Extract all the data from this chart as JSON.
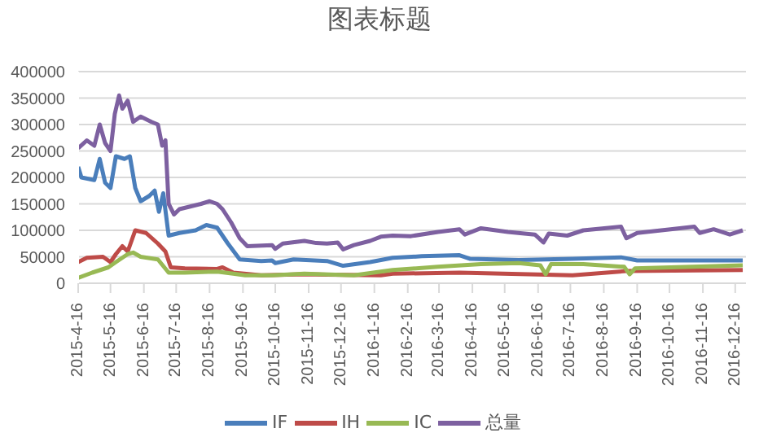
{
  "chart_data": {
    "type": "line",
    "title": "图表标题",
    "xlim": [
      "2015-04-16",
      "2016-12-26"
    ],
    "xticks": [
      {
        "value": "2015-04-16",
        "label": "2015-4-16"
      },
      {
        "value": "2015-05-16",
        "label": "2015-5-16"
      },
      {
        "value": "2015-06-16",
        "label": "2015-6-16"
      },
      {
        "value": "2015-07-16",
        "label": "2015-7-16"
      },
      {
        "value": "2015-08-16",
        "label": "2015-8-16"
      },
      {
        "value": "2015-09-16",
        "label": "2015-9-16"
      },
      {
        "value": "2015-10-16",
        "label": "2015-10-16"
      },
      {
        "value": "2015-11-16",
        "label": "2015-11-16"
      },
      {
        "value": "2015-12-16",
        "label": "2015-12-16"
      },
      {
        "value": "2016-01-16",
        "label": "2016-1-16"
      },
      {
        "value": "2016-02-16",
        "label": "2016-2-16"
      },
      {
        "value": "2016-03-16",
        "label": "2016-3-16"
      },
      {
        "value": "2016-04-16",
        "label": "2016-4-16"
      },
      {
        "value": "2016-05-16",
        "label": "2016-5-16"
      },
      {
        "value": "2016-06-16",
        "label": "2016-6-16"
      },
      {
        "value": "2016-07-16",
        "label": "2016-7-16"
      },
      {
        "value": "2016-08-16",
        "label": "2016-8-16"
      },
      {
        "value": "2016-09-16",
        "label": "2016-9-16"
      },
      {
        "value": "2016-10-16",
        "label": "2016-10-16"
      },
      {
        "value": "2016-11-16",
        "label": "2016-11-16"
      },
      {
        "value": "2016-12-16",
        "label": "2016-12-16"
      }
    ],
    "ylim": [
      0,
      400000
    ],
    "yticks": [
      0,
      50000,
      100000,
      150000,
      200000,
      250000,
      300000,
      350000,
      400000
    ],
    "grid": "y",
    "legend": "bottom",
    "marker": "none",
    "line_style": "solid",
    "series": [
      {
        "name": "IF",
        "color": "#4a7ebb",
        "x": [
          "2015-04-16",
          "2015-04-19",
          "2015-05-01",
          "2015-05-06",
          "2015-05-11",
          "2015-05-16",
          "2015-05-21",
          "2015-05-29",
          "2015-06-03",
          "2015-06-08",
          "2015-06-13",
          "2015-06-21",
          "2015-06-26",
          "2015-06-30",
          "2015-07-04",
          "2015-07-09",
          "2015-07-19",
          "2015-08-03",
          "2015-08-13",
          "2015-08-23",
          "2015-09-02",
          "2015-09-13",
          "2015-10-03",
          "2015-10-13",
          "2015-10-16",
          "2015-11-02",
          "2015-12-03",
          "2015-12-18",
          "2016-01-12",
          "2016-02-02",
          "2016-02-29",
          "2016-04-04",
          "2016-04-14",
          "2016-05-29",
          "2016-07-18",
          "2016-09-01",
          "2016-09-16",
          "2016-12-23"
        ],
        "values": [
          220000,
          200000,
          195000,
          235000,
          190000,
          180000,
          240000,
          235000,
          240000,
          180000,
          155000,
          165000,
          175000,
          135000,
          170000,
          90000,
          95000,
          100000,
          110000,
          105000,
          75000,
          45000,
          42000,
          43000,
          38000,
          45000,
          42000,
          33000,
          40000,
          48000,
          51000,
          53000,
          46000,
          44000,
          46000,
          49000,
          43000,
          43000
        ]
      },
      {
        "name": "IH",
        "color": "#be4b48",
        "x": [
          "2015-04-16",
          "2015-04-24",
          "2015-05-09",
          "2015-05-16",
          "2015-05-21",
          "2015-05-27",
          "2015-06-01",
          "2015-06-08",
          "2015-06-18",
          "2015-06-29",
          "2015-07-06",
          "2015-07-11",
          "2015-07-24",
          "2015-08-23",
          "2015-08-28",
          "2015-09-07",
          "2015-10-03",
          "2015-11-12",
          "2015-12-03",
          "2016-01-22",
          "2016-02-02",
          "2016-04-04",
          "2016-07-18",
          "2016-09-06",
          "2016-12-23"
        ],
        "values": [
          40000,
          48000,
          50000,
          40000,
          55000,
          70000,
          60000,
          100000,
          95000,
          75000,
          60000,
          30000,
          28000,
          27000,
          30000,
          20000,
          15000,
          17000,
          16000,
          15000,
          18000,
          20000,
          15000,
          23000,
          25000
        ]
      },
      {
        "name": "IC",
        "color": "#98b954",
        "x": [
          "2015-04-16",
          "2015-04-29",
          "2015-05-14",
          "2015-05-21",
          "2015-06-01",
          "2015-06-06",
          "2015-06-13",
          "2015-06-29",
          "2015-07-09",
          "2015-07-24",
          "2015-08-23",
          "2015-09-07",
          "2015-09-18",
          "2015-10-13",
          "2015-11-12",
          "2015-12-28",
          "2016-02-02",
          "2016-03-15",
          "2016-04-24",
          "2016-05-29",
          "2016-06-18",
          "2016-06-23",
          "2016-06-28",
          "2016-07-28",
          "2016-09-04",
          "2016-09-09",
          "2016-09-14",
          "2016-12-23"
        ],
        "values": [
          10000,
          20000,
          30000,
          40000,
          55000,
          58000,
          50000,
          45000,
          20000,
          20000,
          22000,
          18000,
          15000,
          15000,
          18000,
          15000,
          25000,
          31000,
          36000,
          38000,
          34000,
          17000,
          36000,
          36000,
          31000,
          17000,
          28000,
          34000
        ]
      },
      {
        "name": "总量",
        "color": "#7d60a0",
        "x": [
          "2015-04-16",
          "2015-04-24",
          "2015-05-01",
          "2015-05-06",
          "2015-05-11",
          "2015-05-16",
          "2015-05-20",
          "2015-05-24",
          "2015-05-27",
          "2015-06-01",
          "2015-06-06",
          "2015-06-13",
          "2015-06-18",
          "2015-06-23",
          "2015-06-29",
          "2015-07-03",
          "2015-07-06",
          "2015-07-09",
          "2015-07-14",
          "2015-07-19",
          "2015-07-29",
          "2015-08-08",
          "2015-08-16",
          "2015-08-23",
          "2015-08-28",
          "2015-09-05",
          "2015-09-13",
          "2015-09-20",
          "2015-10-13",
          "2015-10-16",
          "2015-10-23",
          "2015-11-12",
          "2015-11-23",
          "2015-12-03",
          "2015-12-13",
          "2015-12-18",
          "2015-12-28",
          "2016-01-12",
          "2016-01-22",
          "2016-02-02",
          "2016-02-19",
          "2016-03-15",
          "2016-04-04",
          "2016-04-09",
          "2016-04-24",
          "2016-05-19",
          "2016-06-13",
          "2016-06-21",
          "2016-06-26",
          "2016-07-13",
          "2016-07-28",
          "2016-09-01",
          "2016-09-06",
          "2016-09-16",
          "2016-10-17",
          "2016-11-08",
          "2016-11-13",
          "2016-11-26",
          "2016-12-11",
          "2016-12-23"
        ],
        "values": [
          255000,
          270000,
          260000,
          300000,
          265000,
          250000,
          320000,
          355000,
          330000,
          345000,
          305000,
          315000,
          310000,
          305000,
          300000,
          260000,
          270000,
          150000,
          130000,
          140000,
          145000,
          150000,
          155000,
          150000,
          140000,
          115000,
          85000,
          70000,
          72000,
          65000,
          75000,
          80000,
          76000,
          75000,
          77000,
          64000,
          72000,
          80000,
          88000,
          90000,
          89000,
          97000,
          102000,
          92000,
          104000,
          97000,
          92000,
          77000,
          94000,
          90000,
          100000,
          107000,
          85000,
          95000,
          102000,
          107000,
          95000,
          102000,
          92000,
          100000
        ]
      }
    ]
  }
}
